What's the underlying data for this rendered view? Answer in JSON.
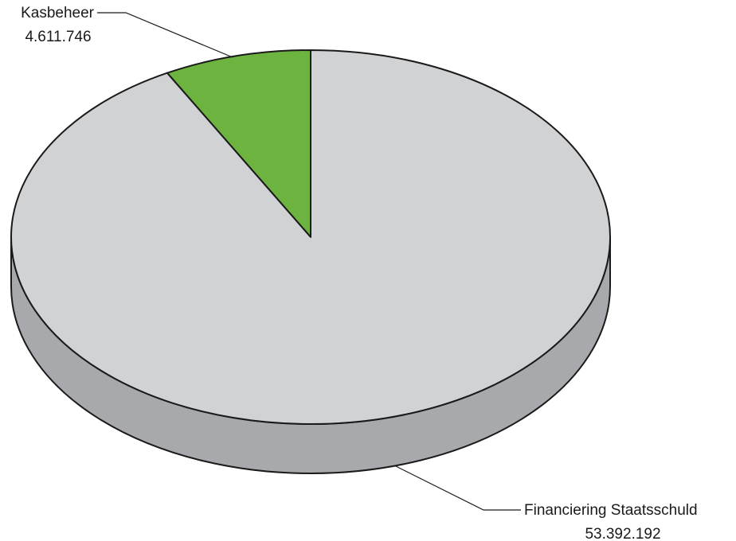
{
  "chart_data": {
    "type": "pie",
    "style": "3d",
    "slices": [
      {
        "label": "Kasbeheer",
        "value": 4611746,
        "value_text": "4.611.746",
        "color": "#6db33f"
      },
      {
        "label": "Financiering Staatsschuld",
        "value": 53392192,
        "value_text": "53.392.192",
        "color": "#d1d2d4"
      }
    ],
    "side_color": "#a7a9ac",
    "edge_color": "#1a1a1a"
  }
}
